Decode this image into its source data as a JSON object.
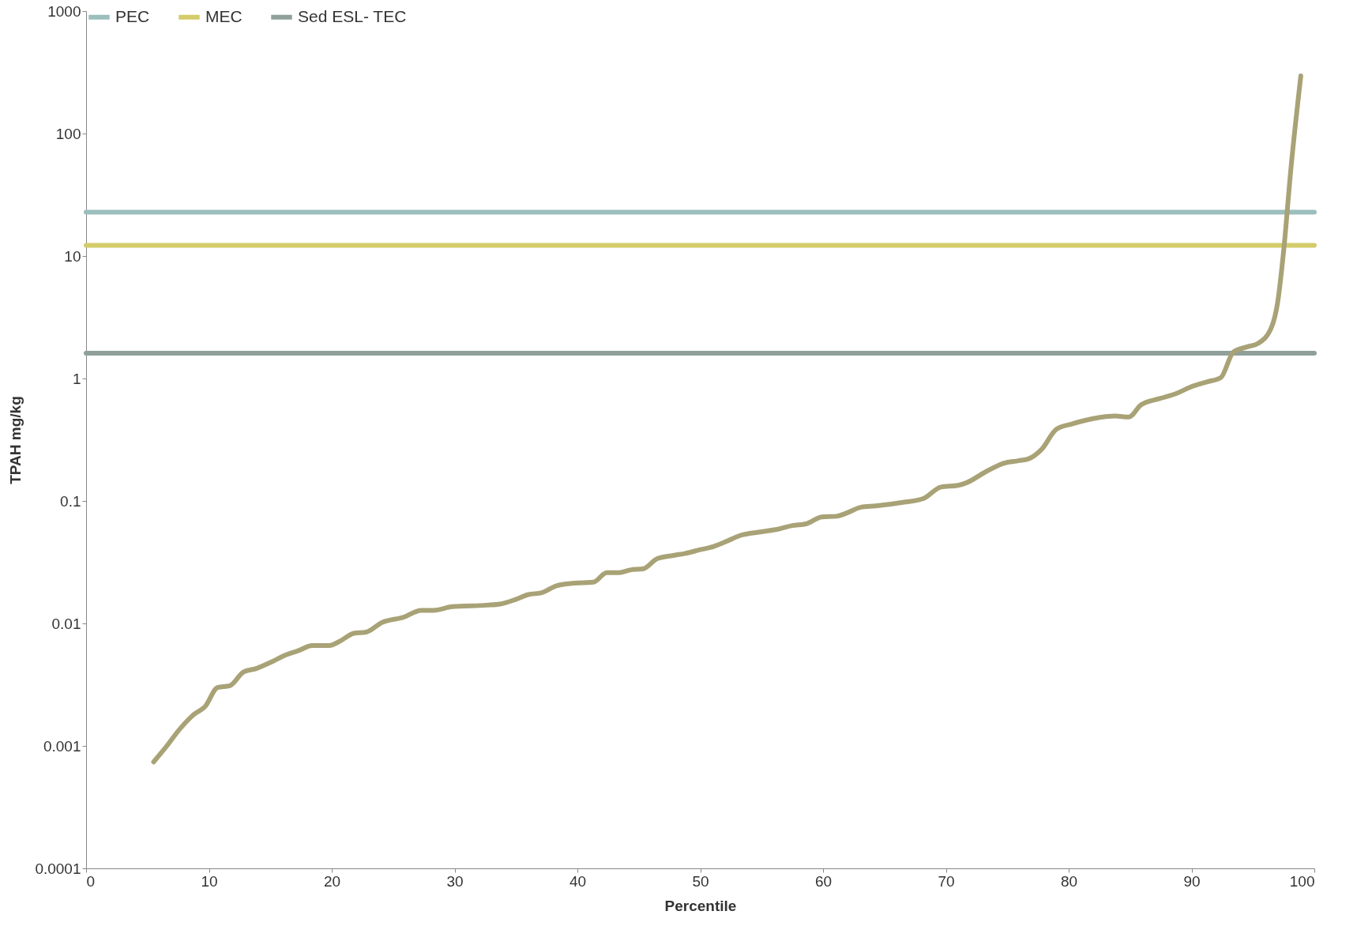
{
  "chart_data": {
    "type": "line",
    "xlabel": "Percentile",
    "ylabel": "TPAH mg/kg",
    "log": "y",
    "xlim": [
      0,
      100
    ],
    "xticks": [
      0,
      10,
      20,
      30,
      40,
      50,
      60,
      70,
      80,
      90,
      100
    ],
    "ylim": [
      0.0001,
      1000
    ],
    "yticks": [
      0.0001,
      0.001,
      0.01,
      0.1,
      1,
      10,
      100,
      1000
    ],
    "grid": false,
    "legend": "top",
    "line_style": "solid",
    "series": [
      {
        "name": "PEC",
        "color": "#9bbfbd",
        "x": [
          0,
          100
        ],
        "values": [
          22.8,
          22.8
        ]
      },
      {
        "name": "MEC",
        "color": "#d4cc6a",
        "x": [
          0,
          100
        ],
        "values": [
          12.2,
          12.2
        ]
      },
      {
        "name": "Sed ESL- TEC",
        "color": "#8fa09a",
        "x": [
          0,
          100
        ],
        "values": [
          1.61,
          1.61
        ]
      },
      {
        "color": "#a8a276",
        "x": [
          5.5,
          6.4,
          7.7,
          8.75,
          9.7,
          10.7,
          11.7,
          12.8,
          13.9,
          15.2,
          16.2,
          17.3,
          18.4,
          19.8,
          20.6,
          21.8,
          22.8,
          24.1,
          25.8,
          27.3,
          28.3,
          29.8,
          32.6,
          33.7,
          34.9,
          36,
          37.1,
          38.3,
          39.7,
          41.3,
          42.4,
          43.4,
          44.3,
          45.4,
          46.5,
          47.9,
          48.8,
          50,
          51.1,
          52.2,
          53.2,
          55,
          56.4,
          57.5,
          58.6,
          59.9,
          61.1,
          62.1,
          63.1,
          64.3,
          66.4,
          68.2,
          69.6,
          71,
          71.7,
          73.2,
          74.7,
          75.9,
          76.7,
          77.8,
          79,
          80.3,
          82,
          83.8,
          84.9,
          85.9,
          87.4,
          88.8,
          89.9,
          91.3,
          92.4,
          93.4,
          94.5,
          95.4,
          96.5,
          97,
          97.5,
          98.1,
          98.9
        ],
        "values": [
          0.00074,
          0.00095,
          0.0014,
          0.0018,
          0.0021,
          0.003,
          0.0031,
          0.004,
          0.0043,
          0.0049,
          0.0055,
          0.006,
          0.0066,
          0.0066,
          0.0071,
          0.0083,
          0.0085,
          0.0102,
          0.0112,
          0.0128,
          0.0128,
          0.0137,
          0.0141,
          0.0144,
          0.0156,
          0.0172,
          0.0178,
          0.0203,
          0.0213,
          0.0217,
          0.026,
          0.026,
          0.0273,
          0.028,
          0.0338,
          0.036,
          0.0373,
          0.04,
          0.0425,
          0.047,
          0.052,
          0.056,
          0.059,
          0.063,
          0.065,
          0.074,
          0.075,
          0.081,
          0.089,
          0.091,
          0.097,
          0.105,
          0.13,
          0.134,
          0.141,
          0.172,
          0.203,
          0.213,
          0.22,
          0.264,
          0.385,
          0.426,
          0.47,
          0.493,
          0.485,
          0.61,
          0.685,
          0.757,
          0.85,
          0.94,
          1.02,
          1.64,
          1.81,
          1.93,
          2.6,
          4.1,
          11,
          52.6,
          296
        ]
      }
    ]
  }
}
